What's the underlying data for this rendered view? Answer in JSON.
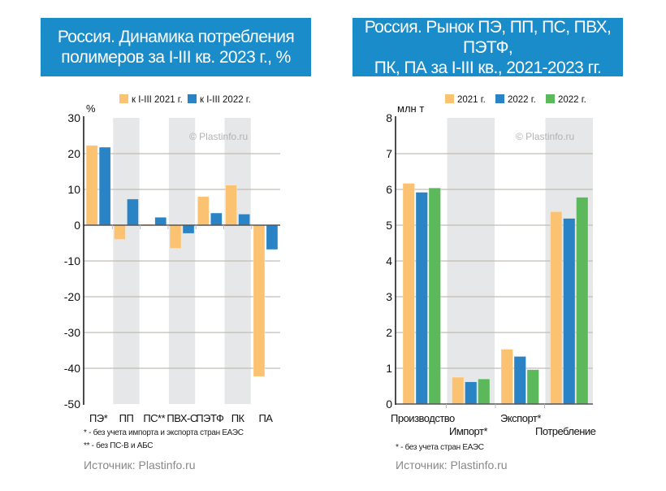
{
  "chart_data": [
    {
      "type": "bar",
      "title": "Россия. Динамика потребления полимеров за I-III кв. 2023 г., %",
      "title_lines": [
        "Россия. Динамика потребления",
        "полимеров за I-III кв. 2023 г., %"
      ],
      "ylabel": "%",
      "xlabel": "",
      "ylim": [
        -50,
        30
      ],
      "yticks": [
        30,
        20,
        10,
        0,
        -10,
        -20,
        -30,
        -40,
        -50
      ],
      "grid": true,
      "legend_position": "top",
      "watermark": "© Plastinfo.ru",
      "categories": [
        "ПЭ*",
        "ПП",
        "ПС**",
        "ПВХ-С",
        "ПЭТФ",
        "ПК",
        "ПА"
      ],
      "shaded_categories": [
        1,
        3,
        5
      ],
      "series": [
        {
          "name": "к I-III 2021 г.",
          "color": "#fbc272",
          "values": [
            22.3,
            -4.0,
            0.3,
            -6.5,
            8.0,
            11.2,
            -42.3
          ]
        },
        {
          "name": "к I-III 2022 г.",
          "color": "#2a83c4",
          "values": [
            21.8,
            7.3,
            2.2,
            -2.3,
            3.4,
            3.1,
            -6.8
          ]
        }
      ],
      "footnotes": [
        "* - без учета импорта и экспорта стран ЕАЭС",
        "** - без ПС-В и АБС"
      ],
      "source": "Источник: Plastinfo.ru"
    },
    {
      "type": "bar",
      "title": "Россия. Рынок ПЭ, ПП, ПС, ПВХ, ПЭТФ, ПК, ПА за I-III кв., 2021-2023 гг.",
      "title_lines": [
        "Россия. Рынок ПЭ, ПП, ПС, ПВХ, ПЭТФ,",
        "ПК, ПА за I-III кв., 2021-2023 гг."
      ],
      "ylabel": "млн т",
      "xlabel": "",
      "ylim": [
        0,
        8
      ],
      "yticks": [
        8,
        7,
        6,
        5,
        4,
        3,
        2,
        1,
        0
      ],
      "grid": true,
      "legend_position": "top",
      "watermark": "© Plastinfo.ru",
      "categories": [
        "Производство",
        "Импорт*",
        "Экспорт*",
        "Потребление"
      ],
      "shaded_categories": [
        1,
        3
      ],
      "series": [
        {
          "name": "2021 г.",
          "color": "#fbc272",
          "values": [
            6.17,
            0.75,
            1.53,
            5.38
          ]
        },
        {
          "name": "2022 г.",
          "color": "#2a83c4",
          "values": [
            5.92,
            0.62,
            1.33,
            5.19
          ]
        },
        {
          "name": "2022 г.",
          "color": "#5bb85b",
          "values": [
            6.04,
            0.7,
            0.96,
            5.78
          ]
        }
      ],
      "footnotes": [
        "* - без учета стран ЕАЭС"
      ],
      "source": "Источник: Plastinfo.ru"
    }
  ]
}
